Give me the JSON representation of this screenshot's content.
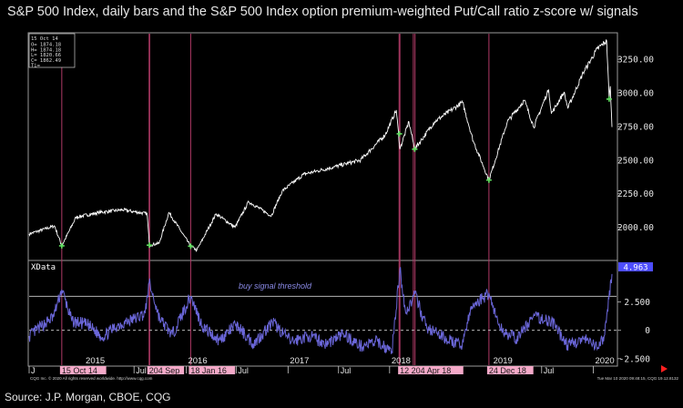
{
  "title": "S&P 500 Index, daily bars and the S&P 500 Index option premium-weighted Put/Call ratio z-score w/ signals",
  "source": "Source: J.P. Morgan, CBOE, CQG",
  "ohlc_box": {
    "date": "15 Oct 14",
    "lines": [
      "O= 1874.18",
      "H= 1874.18",
      "L= 1820.66",
      "C= 1862.49",
      "Ti="
    ]
  },
  "lower_panel_label": "XData",
  "threshold_label": "buy signal threshold",
  "last_value_badge": "4.963",
  "footer_left": "CQG Inc. © 2020 All rights reserved worldwide. http://www.cqg.com",
  "footer_right": "Tue Mar 10 2020 09:48:15, CQG 19.12.8132",
  "colors": {
    "price_line": "#ffffff",
    "zscore_line": "#6a66d8",
    "threshold_line": "#b4b4b4",
    "signal_line": "#b03a66",
    "date_highlight": "#f4a9c8",
    "signal_marker": "#5fe05f",
    "badge_bg": "#4d4dff",
    "right_arrow": "#ff2020"
  },
  "x_axis": {
    "ticks": [
      {
        "label": "J",
        "date": "2014-06-20"
      },
      {
        "label": "2015",
        "date": "2015-01-02"
      },
      {
        "label": "Jul",
        "date": "2015-07-01"
      },
      {
        "label": "2016",
        "date": "2016-01-04"
      },
      {
        "label": "Jul",
        "date": "2016-07-01"
      },
      {
        "label": "2017",
        "date": "2017-01-03"
      },
      {
        "label": "Jul",
        "date": "2017-07-03"
      },
      {
        "label": "2018",
        "date": "2018-01-02"
      },
      {
        "label": "Jul",
        "date": "2018-07-02"
      },
      {
        "label": "2019",
        "date": "2019-01-02"
      },
      {
        "label": "Jul",
        "date": "2019-07-01"
      },
      {
        "label": "2020",
        "date": "2020-01-02"
      }
    ],
    "highlighted_labels": [
      {
        "label": "15 Oct 14",
        "date": "2014-10-15"
      },
      {
        "label": "204 Sep",
        "date": "2015-08-24"
      },
      {
        "label": "18 Jan 16",
        "date": "2016-01-20"
      },
      {
        "label": "12 204 Apr 18",
        "date": "2018-02-08"
      },
      {
        "label": "24 Dec 18",
        "date": "2018-12-24"
      }
    ]
  },
  "chart_data": [
    {
      "type": "line",
      "name_panel": "price",
      "y_axis_ticks": [
        "3250.00",
        "3000.00",
        "2750.00",
        "2500.00",
        "2250.00",
        "2000.00"
      ],
      "ylim": [
        1780,
        3420
      ],
      "x": [
        "2014-06-20",
        "2014-09-19",
        "2014-10-15",
        "2014-12-05",
        "2015-02-27",
        "2015-05-21",
        "2015-08-17",
        "2015-08-25",
        "2015-09-29",
        "2015-11-03",
        "2016-01-20",
        "2016-02-11",
        "2016-04-20",
        "2016-06-27",
        "2016-08-15",
        "2016-11-04",
        "2016-12-13",
        "2017-03-01",
        "2017-06-19",
        "2017-09-20",
        "2017-12-18",
        "2018-01-26",
        "2018-02-08",
        "2018-03-12",
        "2018-04-02",
        "2018-06-12",
        "2018-09-20",
        "2018-10-29",
        "2018-12-24",
        "2019-02-28",
        "2019-04-30",
        "2019-06-03",
        "2019-07-26",
        "2019-08-05",
        "2019-09-19",
        "2019-10-03",
        "2019-11-27",
        "2020-01-17",
        "2020-02-19",
        "2020-02-28",
        "2020-03-03",
        "2020-03-09"
      ],
      "y": [
        1950,
        2010,
        1862,
        2075,
        2110,
        2130,
        2100,
        1867,
        1881,
        2110,
        1859,
        1829,
        2100,
        2000,
        2190,
        2085,
        2270,
        2395,
        2450,
        2500,
        2690,
        2872,
        2581,
        2786,
        2581,
        2785,
        2930,
        2641,
        2351,
        2785,
        2945,
        2745,
        3025,
        2845,
        3005,
        2887,
        3150,
        3330,
        3386,
        2954,
        3050,
        2746
      ],
      "signals": [
        {
          "date": "2014-10-15",
          "value": 1862
        },
        {
          "date": "2015-08-25",
          "value": 1867
        },
        {
          "date": "2016-01-20",
          "value": 1859
        },
        {
          "date": "2018-02-06",
          "value": 2695
        },
        {
          "date": "2018-04-02",
          "value": 2581
        },
        {
          "date": "2018-12-24",
          "value": 2351
        },
        {
          "date": "2020-02-28",
          "value": 2954
        }
      ]
    },
    {
      "type": "line",
      "name_panel": "zscore",
      "y_axis_ticks": [
        "2.500",
        "0",
        "-2.500"
      ],
      "ylim": [
        -3.0,
        6.0
      ],
      "threshold": 3.0,
      "x": [
        "2014-06-20",
        "2014-08-01",
        "2014-09-15",
        "2014-10-15",
        "2014-11-20",
        "2015-01-15",
        "2015-03-10",
        "2015-05-01",
        "2015-06-30",
        "2015-08-10",
        "2015-08-24",
        "2015-10-01",
        "2015-11-15",
        "2016-01-20",
        "2016-03-01",
        "2016-05-01",
        "2016-07-01",
        "2016-09-01",
        "2016-11-08",
        "2017-01-15",
        "2017-03-20",
        "2017-05-20",
        "2017-07-20",
        "2017-09-20",
        "2017-11-20",
        "2018-01-10",
        "2018-02-08",
        "2018-03-01",
        "2018-04-02",
        "2018-05-15",
        "2018-07-15",
        "2018-09-15",
        "2018-10-25",
        "2018-12-24",
        "2019-02-01",
        "2019-04-01",
        "2019-06-01",
        "2019-08-05",
        "2019-10-01",
        "2019-12-01",
        "2020-01-20",
        "2020-02-10",
        "2020-02-27",
        "2020-03-09"
      ],
      "y": [
        -0.5,
        0.3,
        1.2,
        3.6,
        0.8,
        0.5,
        -0.6,
        0.4,
        1.0,
        1.5,
        4.2,
        1.0,
        -0.4,
        3.0,
        0.4,
        -0.9,
        0.5,
        -1.2,
        0.7,
        -1.0,
        -0.5,
        -1.2,
        -0.3,
        -1.4,
        -1.0,
        -1.9,
        5.4,
        1.5,
        3.2,
        0.2,
        -0.6,
        -1.4,
        2.1,
        3.3,
        0.2,
        -0.8,
        1.2,
        0.8,
        -1.3,
        -0.8,
        -1.6,
        -0.5,
        2.8,
        4.963
      ]
    }
  ]
}
